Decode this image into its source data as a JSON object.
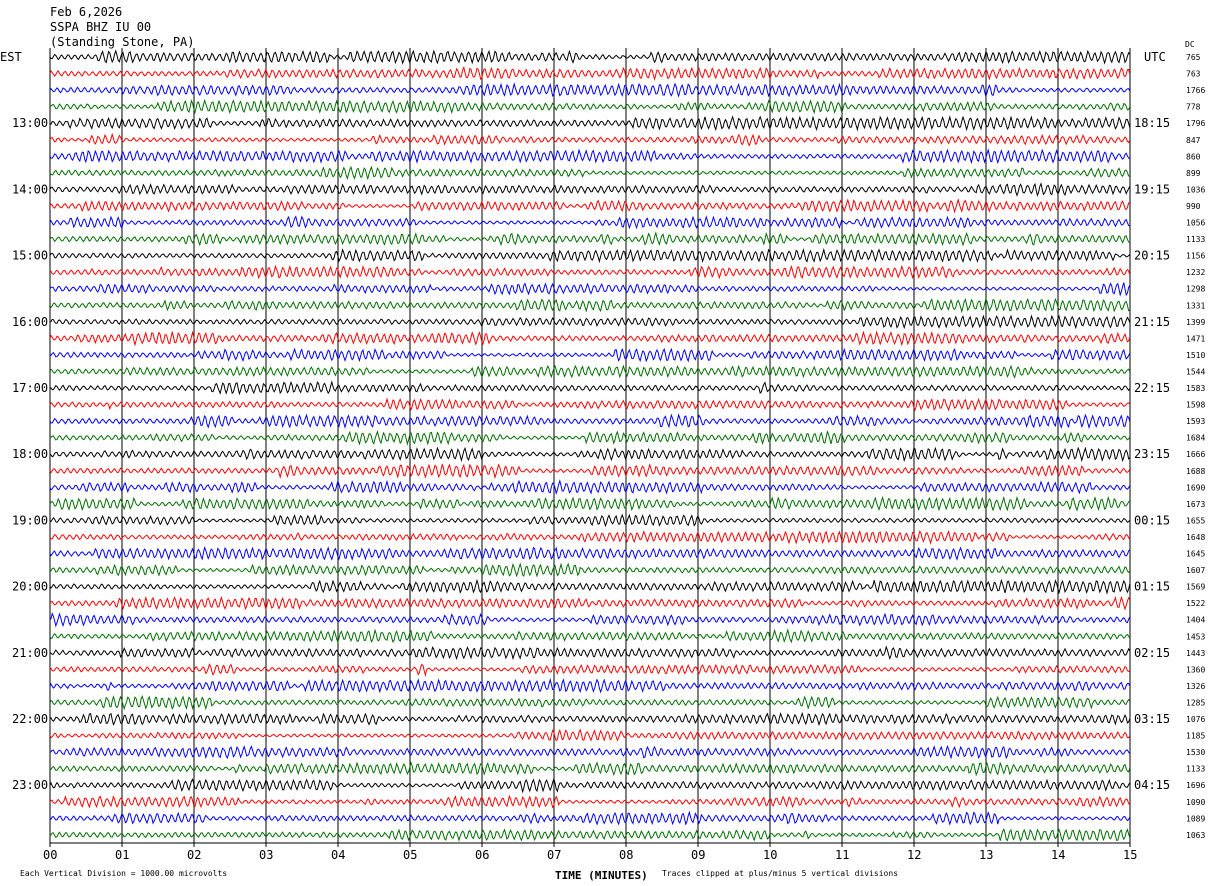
{
  "header": {
    "date": "Feb 6,2026",
    "station": "SSPA BHZ IU 00",
    "location": "(Standing Stone, PA)"
  },
  "left_zone": "EST",
  "right_zone": "UTC",
  "dc_label": "DC",
  "footer": {
    "scale": "Each Vertical Division = 1000.00 microvolts",
    "xlabel": "TIME (MINUTES)",
    "clip": "Traces clipped at plus/minus 5 vertical divisions"
  },
  "chart_data": {
    "type": "line",
    "title": "SSPA BHZ IU 00",
    "xlabel": "TIME (MINUTES)",
    "xlim": [
      0,
      15
    ],
    "x_ticks": [
      "00",
      "01",
      "02",
      "03",
      "04",
      "05",
      "06",
      "07",
      "08",
      "09",
      "10",
      "11",
      "12",
      "13",
      "14",
      "15"
    ],
    "grid": true,
    "trace_colors": [
      "#000000",
      "#ff0000",
      "#0000ff",
      "#007000"
    ],
    "left_hour_labels": [
      "13:00",
      "14:00",
      "15:00",
      "16:00",
      "17:00",
      "18:00",
      "19:00",
      "20:00",
      "21:00",
      "22:00",
      "23:00"
    ],
    "right_hour_labels": [
      "18:15",
      "19:15",
      "20:15",
      "21:15",
      "22:15",
      "23:15",
      "00:15",
      "01:15",
      "02:15",
      "03:15",
      "04:15"
    ],
    "dc_values": [
      "765",
      "763",
      "1766",
      "778",
      "1796",
      "847",
      "860",
      "899",
      "1036",
      "990",
      "1056",
      "1133",
      "1156",
      "1232",
      "1298",
      "1331",
      "1399",
      "1471",
      "1510",
      "1544",
      "1583",
      "1598",
      "1593",
      "1684",
      "1666",
      "1688",
      "1690",
      "1673",
      "1655",
      "1648",
      "1645",
      "1607",
      "1569",
      "1522",
      "1404",
      "1453",
      "1443",
      "1360",
      "1326",
      "1285",
      "1076",
      "1185",
      "1530",
      "1133",
      "1696",
      "1090",
      "1089",
      "1063"
    ]
  }
}
